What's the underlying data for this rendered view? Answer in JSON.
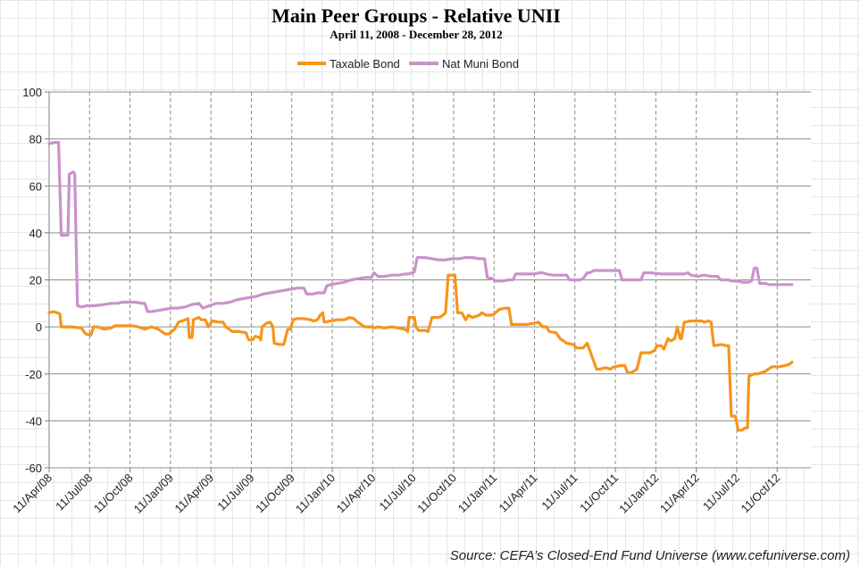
{
  "title": "Main Peer Groups - Relative UNII",
  "subtitle": "April 11, 2008 - December 28, 2012",
  "source": "Source: CEFA’s Closed-End Fund Universe (www.cefuniverse.com)",
  "chart_data": {
    "type": "line",
    "title": "Main Peer Groups - Relative UNII",
    "subtitle": "April 11, 2008 - December 28, 2012",
    "xlabel": "",
    "ylabel": "",
    "ylim": [
      -60,
      100
    ],
    "yticks": [
      100,
      80,
      60,
      40,
      20,
      0,
      -20,
      -40,
      -60
    ],
    "xlim": [
      0,
      56.5
    ],
    "x_unit": "months since 11/Apr/08",
    "xticks": [
      {
        "x": 0,
        "label": "11/Apr/08"
      },
      {
        "x": 3,
        "label": "11/Jul/08"
      },
      {
        "x": 6,
        "label": "11/Oct/08"
      },
      {
        "x": 9,
        "label": "11/Jan/09"
      },
      {
        "x": 12,
        "label": "11/Apr/09"
      },
      {
        "x": 15,
        "label": "11/Jul/09"
      },
      {
        "x": 18,
        "label": "11/Oct/09"
      },
      {
        "x": 21,
        "label": "11/Jan/10"
      },
      {
        "x": 24,
        "label": "11/Apr/10"
      },
      {
        "x": 27,
        "label": "11/Jul/10"
      },
      {
        "x": 30,
        "label": "11/Oct/10"
      },
      {
        "x": 33,
        "label": "11/Jan/11"
      },
      {
        "x": 36,
        "label": "11/Apr/11"
      },
      {
        "x": 39,
        "label": "11/Jul/11"
      },
      {
        "x": 42,
        "label": "11/Oct/11"
      },
      {
        "x": 45,
        "label": "11/Jan/12"
      },
      {
        "x": 48,
        "label": "11/Apr/12"
      },
      {
        "x": 51,
        "label": "11/Jul/12"
      },
      {
        "x": 54,
        "label": "11/Oct/12"
      }
    ],
    "legend_position": "top-center",
    "series": [
      {
        "name": "Taxable Bond",
        "color": "#f7941d",
        "points": [
          [
            0,
            6
          ],
          [
            0.3,
            6.5
          ],
          [
            0.6,
            6
          ],
          [
            0.8,
            5.5
          ],
          [
            0.9,
            0
          ],
          [
            1.6,
            0
          ],
          [
            2.4,
            -0.5
          ],
          [
            2.7,
            -3
          ],
          [
            3.1,
            -3.5
          ],
          [
            3.3,
            0
          ],
          [
            3.6,
            0
          ],
          [
            4.1,
            -1
          ],
          [
            4.6,
            -0.5
          ],
          [
            4.9,
            0.5
          ],
          [
            5.6,
            0.5
          ],
          [
            6.1,
            0.5
          ],
          [
            6.6,
            0
          ],
          [
            7.1,
            -1
          ],
          [
            7.6,
            0
          ],
          [
            8.1,
            -1
          ],
          [
            8.6,
            -3
          ],
          [
            8.9,
            -3
          ],
          [
            9.1,
            -2
          ],
          [
            9.3,
            -1
          ],
          [
            9.6,
            2
          ],
          [
            10.1,
            3
          ],
          [
            10.3,
            3.5
          ],
          [
            10.4,
            -4.5
          ],
          [
            10.6,
            -4.5
          ],
          [
            10.7,
            3
          ],
          [
            11.1,
            4
          ],
          [
            11.3,
            3
          ],
          [
            11.6,
            3
          ],
          [
            11.8,
            0
          ],
          [
            12.1,
            2.5
          ],
          [
            12.6,
            2
          ],
          [
            12.9,
            2
          ],
          [
            13.1,
            0
          ],
          [
            13.6,
            -2
          ],
          [
            14.1,
            -2
          ],
          [
            14.6,
            -2.5
          ],
          [
            14.8,
            -5.5
          ],
          [
            15.1,
            -5.5
          ],
          [
            15.3,
            -4
          ],
          [
            15.6,
            -4.5
          ],
          [
            15.7,
            -5.5
          ],
          [
            15.8,
            0
          ],
          [
            16.1,
            1.5
          ],
          [
            16.4,
            2
          ],
          [
            16.6,
            0
          ],
          [
            16.7,
            -7
          ],
          [
            17.1,
            -7.5
          ],
          [
            17.4,
            -7.5
          ],
          [
            17.7,
            -1
          ],
          [
            17.9,
            -1
          ],
          [
            18.1,
            3
          ],
          [
            18.4,
            3.5
          ],
          [
            18.9,
            3.5
          ],
          [
            19.4,
            3
          ],
          [
            19.6,
            2.5
          ],
          [
            19.9,
            3
          ],
          [
            20.1,
            5
          ],
          [
            20.3,
            6
          ],
          [
            20.4,
            2
          ],
          [
            20.9,
            2.5
          ],
          [
            21.4,
            3
          ],
          [
            21.9,
            3
          ],
          [
            22.1,
            3.5
          ],
          [
            22.3,
            4
          ],
          [
            22.6,
            3.5
          ],
          [
            22.9,
            2
          ],
          [
            23.4,
            0
          ],
          [
            23.9,
            0
          ],
          [
            24.1,
            -0.5
          ],
          [
            24.4,
            0
          ],
          [
            24.9,
            -0.5
          ],
          [
            25.4,
            0
          ],
          [
            25.9,
            -0.5
          ],
          [
            26.4,
            -1
          ],
          [
            26.6,
            -2
          ],
          [
            26.7,
            4
          ],
          [
            27.1,
            4
          ],
          [
            27.2,
            0
          ],
          [
            27.4,
            -1.5
          ],
          [
            27.9,
            -1.5
          ],
          [
            28.1,
            -2
          ],
          [
            28.4,
            4
          ],
          [
            28.9,
            4
          ],
          [
            29.1,
            4.5
          ],
          [
            29.4,
            6
          ],
          [
            29.6,
            22
          ],
          [
            30.1,
            22
          ],
          [
            30.3,
            6
          ],
          [
            30.6,
            6
          ],
          [
            30.9,
            3
          ],
          [
            31.1,
            5
          ],
          [
            31.4,
            4
          ],
          [
            31.9,
            5
          ],
          [
            32.1,
            6
          ],
          [
            32.4,
            5
          ],
          [
            32.9,
            5
          ],
          [
            33.1,
            6
          ],
          [
            33.4,
            7.5
          ],
          [
            33.9,
            8
          ],
          [
            34.1,
            8
          ],
          [
            34.3,
            1
          ],
          [
            35.4,
            1
          ],
          [
            35.9,
            1.5
          ],
          [
            36.3,
            2
          ],
          [
            36.6,
            0
          ],
          [
            36.9,
            0
          ],
          [
            37.1,
            -2
          ],
          [
            37.6,
            -2.5
          ],
          [
            37.9,
            -5
          ],
          [
            38.4,
            -7
          ],
          [
            38.9,
            -7.5
          ],
          [
            39.1,
            -9
          ],
          [
            39.6,
            -9
          ],
          [
            39.9,
            -7
          ],
          [
            40.1,
            -10
          ],
          [
            40.6,
            -18
          ],
          [
            40.9,
            -18
          ],
          [
            41.1,
            -17.5
          ],
          [
            41.4,
            -17.5
          ],
          [
            41.6,
            -18
          ],
          [
            41.9,
            -17
          ],
          [
            42.4,
            -16.5
          ],
          [
            42.7,
            -16.5
          ],
          [
            42.9,
            -19.5
          ],
          [
            43.2,
            -19.5
          ],
          [
            43.6,
            -18
          ],
          [
            43.9,
            -11
          ],
          [
            44.6,
            -11
          ],
          [
            44.9,
            -10
          ],
          [
            45.1,
            -8
          ],
          [
            45.4,
            -8
          ],
          [
            45.6,
            -9.5
          ],
          [
            45.9,
            -5
          ],
          [
            46.1,
            -6
          ],
          [
            46.4,
            -5
          ],
          [
            46.6,
            0
          ],
          [
            46.8,
            -5
          ],
          [
            46.9,
            -5
          ],
          [
            47.1,
            2
          ],
          [
            47.6,
            2.5
          ],
          [
            47.9,
            2.5
          ],
          [
            48.4,
            2.5
          ],
          [
            48.6,
            2
          ],
          [
            48.9,
            2.5
          ],
          [
            49.1,
            2
          ],
          [
            49.3,
            -8
          ],
          [
            49.9,
            -7.5
          ],
          [
            50.2,
            -8
          ],
          [
            50.4,
            -8
          ],
          [
            50.6,
            -38
          ],
          [
            50.9,
            -38
          ],
          [
            51.1,
            -44
          ],
          [
            51.4,
            -44
          ],
          [
            51.6,
            -43
          ],
          [
            51.8,
            -43
          ],
          [
            51.9,
            -21
          ],
          [
            52.3,
            -20
          ],
          [
            52.6,
            -20
          ],
          [
            53.1,
            -19
          ],
          [
            53.6,
            -17
          ],
          [
            54.1,
            -17
          ],
          [
            54.6,
            -16.5
          ],
          [
            54.9,
            -16
          ],
          [
            55.1,
            -15
          ]
        ]
      },
      {
        "name": "Nat Muni Bond",
        "color": "#c993cc",
        "points": [
          [
            0,
            78
          ],
          [
            0.4,
            78.5
          ],
          [
            0.7,
            78.5
          ],
          [
            0.9,
            39
          ],
          [
            1.4,
            39
          ],
          [
            1.5,
            65
          ],
          [
            1.8,
            66
          ],
          [
            1.9,
            65
          ],
          [
            2.1,
            9
          ],
          [
            2.4,
            8.5
          ],
          [
            2.8,
            9
          ],
          [
            3.4,
            9
          ],
          [
            4.1,
            9.5
          ],
          [
            4.6,
            10
          ],
          [
            5.1,
            10
          ],
          [
            5.4,
            10.5
          ],
          [
            6.4,
            10.5
          ],
          [
            6.9,
            10
          ],
          [
            7.1,
            10
          ],
          [
            7.3,
            6.5
          ],
          [
            7.6,
            6.5
          ],
          [
            8.1,
            7
          ],
          [
            8.6,
            7.5
          ],
          [
            9.1,
            8
          ],
          [
            9.6,
            8
          ],
          [
            10.1,
            8.5
          ],
          [
            10.6,
            9.5
          ],
          [
            11.1,
            10
          ],
          [
            11.4,
            8
          ],
          [
            11.9,
            9
          ],
          [
            12.4,
            10
          ],
          [
            12.9,
            10
          ],
          [
            13.4,
            10.5
          ],
          [
            13.9,
            11.5
          ],
          [
            14.4,
            12
          ],
          [
            14.9,
            12.5
          ],
          [
            15.4,
            13
          ],
          [
            15.9,
            14
          ],
          [
            16.4,
            14.5
          ],
          [
            16.9,
            15
          ],
          [
            17.4,
            15.5
          ],
          [
            17.9,
            16
          ],
          [
            18.4,
            16.5
          ],
          [
            18.9,
            16.5
          ],
          [
            19.1,
            14
          ],
          [
            19.6,
            14
          ],
          [
            19.9,
            14.5
          ],
          [
            20.4,
            14.5
          ],
          [
            20.6,
            17.5
          ],
          [
            20.9,
            18
          ],
          [
            21.4,
            18.5
          ],
          [
            21.9,
            19
          ],
          [
            22.4,
            20
          ],
          [
            22.9,
            20.5
          ],
          [
            23.4,
            21
          ],
          [
            23.9,
            21
          ],
          [
            24.1,
            23
          ],
          [
            24.4,
            21.5
          ],
          [
            24.9,
            21.5
          ],
          [
            25.4,
            22
          ],
          [
            25.9,
            22
          ],
          [
            26.4,
            22.5
          ],
          [
            26.7,
            22.5
          ],
          [
            27.1,
            23.5
          ],
          [
            27.3,
            29.5
          ],
          [
            27.9,
            29.5
          ],
          [
            28.4,
            29
          ],
          [
            28.9,
            28.5
          ],
          [
            29.4,
            28.5
          ],
          [
            29.9,
            29
          ],
          [
            30.4,
            29
          ],
          [
            30.9,
            29.5
          ],
          [
            31.4,
            29.5
          ],
          [
            31.9,
            29
          ],
          [
            32.3,
            29
          ],
          [
            32.5,
            21
          ],
          [
            32.9,
            20.5
          ],
          [
            33.1,
            19.5
          ],
          [
            33.6,
            19.5
          ],
          [
            34.1,
            20
          ],
          [
            34.4,
            20
          ],
          [
            34.6,
            22.5
          ],
          [
            35.4,
            22.5
          ],
          [
            35.9,
            22.5
          ],
          [
            36.4,
            23
          ],
          [
            36.6,
            23
          ],
          [
            36.9,
            22.5
          ],
          [
            37.4,
            22
          ],
          [
            38.4,
            22
          ],
          [
            38.6,
            20
          ],
          [
            39.4,
            20
          ],
          [
            39.6,
            20.5
          ],
          [
            39.9,
            23
          ],
          [
            40.1,
            23
          ],
          [
            40.4,
            24
          ],
          [
            40.9,
            24
          ],
          [
            41.4,
            24
          ],
          [
            41.9,
            24
          ],
          [
            42.3,
            24
          ],
          [
            42.5,
            20
          ],
          [
            43.9,
            20
          ],
          [
            44.1,
            23
          ],
          [
            44.6,
            23
          ],
          [
            45.4,
            22.5
          ],
          [
            46.4,
            22.5
          ],
          [
            47.1,
            22.5
          ],
          [
            47.4,
            23
          ],
          [
            47.6,
            22
          ],
          [
            48.1,
            21.5
          ],
          [
            48.6,
            22
          ],
          [
            49.1,
            21.5
          ],
          [
            49.6,
            21.5
          ],
          [
            49.8,
            20
          ],
          [
            50.4,
            20
          ],
          [
            50.6,
            19.5
          ],
          [
            51.1,
            19.5
          ],
          [
            51.4,
            19
          ],
          [
            51.9,
            19
          ],
          [
            52.1,
            19.5
          ],
          [
            52.3,
            25
          ],
          [
            52.5,
            25
          ],
          [
            52.7,
            18.5
          ],
          [
            53.1,
            18.5
          ],
          [
            53.4,
            18
          ],
          [
            53.9,
            18
          ],
          [
            54.4,
            18
          ],
          [
            55.1,
            18
          ]
        ]
      }
    ]
  }
}
